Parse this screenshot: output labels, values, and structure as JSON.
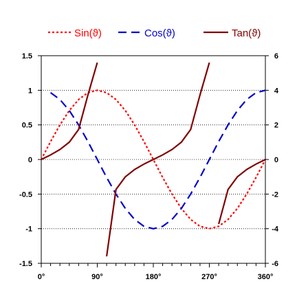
{
  "chart_data": {
    "type": "line",
    "x": [
      0,
      15,
      30,
      45,
      60,
      75,
      90,
      105,
      120,
      135,
      150,
      165,
      180,
      195,
      210,
      225,
      240,
      255,
      270,
      285,
      300,
      315,
      330,
      345,
      360
    ],
    "series": [
      {
        "name": "Sin(ϑ)",
        "axis": "left",
        "color": "#ff0000",
        "dash": "dotted",
        "values": [
          0,
          0.259,
          0.5,
          0.707,
          0.866,
          0.966,
          1,
          0.966,
          0.866,
          0.707,
          0.5,
          0.259,
          0,
          -0.259,
          -0.5,
          -0.707,
          -0.866,
          -0.966,
          -1,
          -0.966,
          -0.866,
          -0.707,
          -0.5,
          -0.259,
          0
        ]
      },
      {
        "name": "Cos(ϑ)",
        "axis": "left",
        "color": "#0000cc",
        "dash": "long-dash",
        "values": [
          null,
          0.966,
          0.866,
          0.707,
          0.5,
          0.259,
          0,
          -0.259,
          -0.5,
          -0.707,
          -0.866,
          -0.966,
          -1,
          -0.966,
          -0.866,
          -0.707,
          -0.5,
          -0.259,
          0,
          0.259,
          0.5,
          0.707,
          0.866,
          0.966,
          1
        ]
      },
      {
        "name": "Tan(ϑ)",
        "axis": "right",
        "color": "#800000",
        "dash": "solid",
        "values": [
          0,
          0.268,
          0.577,
          1,
          1.732,
          3.732,
          5.6,
          -5.6,
          -1.732,
          -1,
          -0.577,
          -0.268,
          0,
          0.268,
          0.577,
          1,
          1.732,
          3.732,
          5.6,
          -3.732,
          -1.732,
          -1,
          -0.577,
          -0.268,
          0
        ]
      }
    ],
    "x_ticks": [
      0,
      90,
      180,
      270,
      360
    ],
    "x_tick_labels": [
      "0°",
      "90°",
      "180°",
      "270°",
      "360°"
    ],
    "xlim": [
      0,
      360
    ],
    "y_left": {
      "lim": [
        -1.5,
        1.5
      ],
      "ticks": [
        -1.5,
        -1,
        -0.5,
        0,
        0.5,
        1,
        1.5
      ],
      "tick_labels": [
        "-1.5",
        "-1",
        "-0.5",
        "0",
        "0.5",
        "1",
        "1.5"
      ]
    },
    "y_right": {
      "lim": [
        -6,
        6
      ],
      "ticks": [
        -6,
        -4,
        -2,
        0,
        2,
        4,
        6
      ],
      "tick_labels": [
        "-6",
        "-4",
        "-2",
        "0",
        "2",
        "4",
        "6"
      ]
    },
    "grid": "horizontal-dotted",
    "legend_position": "top",
    "title": "",
    "xlabel": "",
    "ylabel": ""
  }
}
